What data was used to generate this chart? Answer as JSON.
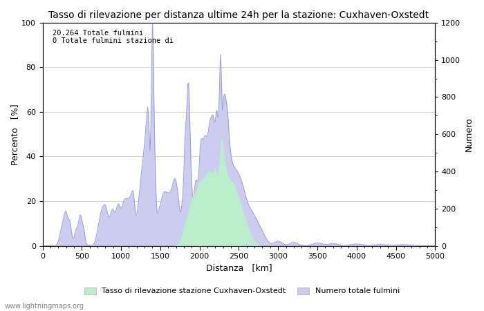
{
  "title": "Tasso di rilevazione per distanza ultime 24h per la stazione: Cuxhaven-Oxstedt",
  "xlabel": "Distanza   [km]",
  "ylabel_left": "Percento   [%]",
  "ylabel_right": "Numero",
  "annotation_line1": "20.264 Totale fulmini",
  "annotation_line2": "0 Totale fulmini stazione di",
  "legend_label1": "Tasso di rilevazione stazione Cuxhaven-Oxstedt",
  "legend_label2": "Numero totale fulmini",
  "watermark": "www.lightningmaps.org",
  "xlim": [
    0,
    5000
  ],
  "ylim_left": [
    0,
    100
  ],
  "ylim_right": [
    0,
    1200
  ],
  "background_color": "#ffffff",
  "grid_color": "#cccccc",
  "line_color": "#9999dd",
  "fill_blue_color": "#ccccee",
  "fill_green_color": "#bbeecc",
  "title_fontsize": 10,
  "label_fontsize": 9,
  "tick_fontsize": 8,
  "x_ticks": [
    0,
    500,
    1000,
    1500,
    2000,
    2500,
    3000,
    3500,
    4000,
    4500,
    5000
  ],
  "y_ticks_left": [
    0,
    20,
    40,
    60,
    80,
    100
  ],
  "y_ticks_right": [
    0,
    200,
    400,
    600,
    800,
    1000,
    1200
  ]
}
